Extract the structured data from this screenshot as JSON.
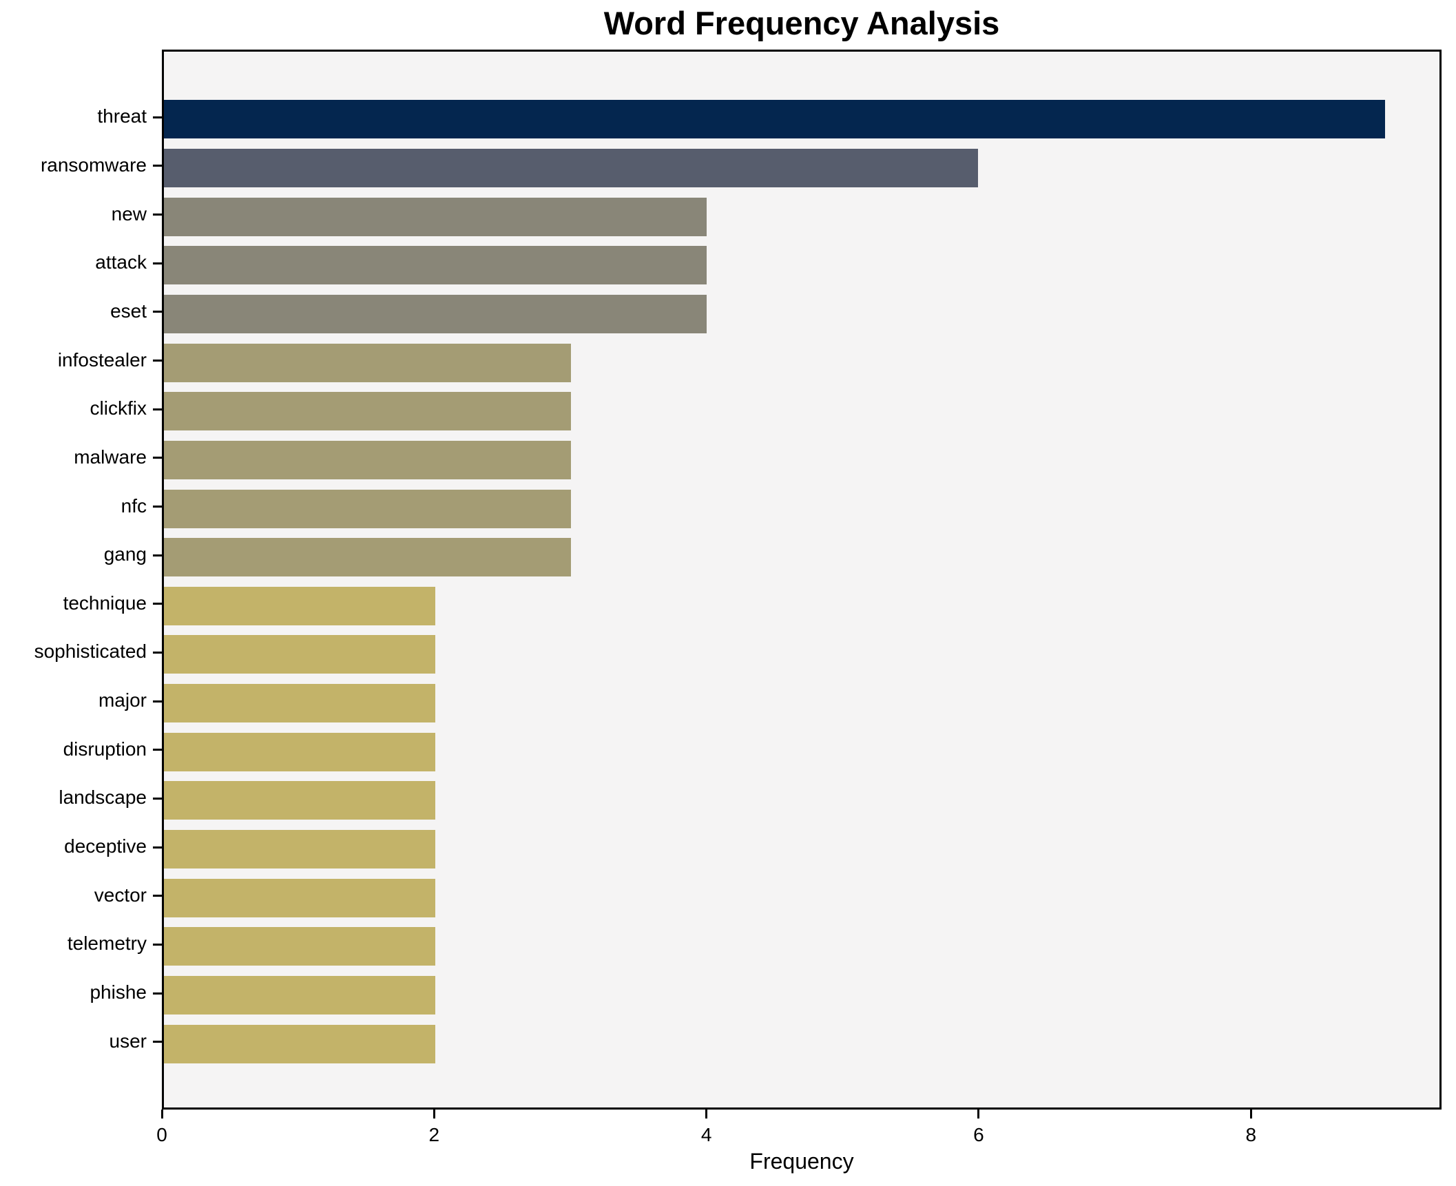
{
  "chart_data": {
    "type": "bar",
    "orientation": "horizontal",
    "title": "Word Frequency Analysis",
    "xlabel": "Frequency",
    "ylabel": "",
    "categories": [
      "threat",
      "ransomware",
      "new",
      "attack",
      "eset",
      "infostealer",
      "clickfix",
      "malware",
      "nfc",
      "gang",
      "technique",
      "sophisticated",
      "major",
      "disruption",
      "landscape",
      "deceptive",
      "vector",
      "telemetry",
      "phishe",
      "user"
    ],
    "values": [
      9,
      6,
      4,
      4,
      4,
      3,
      3,
      3,
      3,
      3,
      2,
      2,
      2,
      2,
      2,
      2,
      2,
      2,
      2,
      2
    ],
    "bar_colors": [
      "#04264f",
      "#575d6d",
      "#898678",
      "#898678",
      "#898678",
      "#a49c74",
      "#a49c74",
      "#a49c74",
      "#a49c74",
      "#a49c74",
      "#c3b369",
      "#c3b369",
      "#c3b369",
      "#c3b369",
      "#c3b369",
      "#c3b369",
      "#c3b369",
      "#c3b369",
      "#c3b369",
      "#c3b369"
    ],
    "xlim": [
      0,
      9.4
    ],
    "xticks": [
      0,
      2,
      4,
      6,
      8
    ],
    "grid": false,
    "legend_position": "none",
    "plot_bg_color": "#f5f4f4",
    "figure_bg_color": "#ffffff",
    "spine_color": "#000000"
  }
}
